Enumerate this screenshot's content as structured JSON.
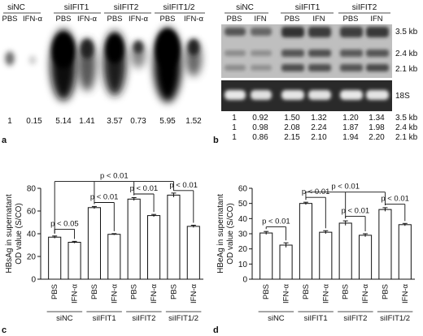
{
  "panel_a": {
    "label": "a",
    "groups": [
      "siNC",
      "siIFIT1",
      "siIFIT2",
      "siIFIT1/2"
    ],
    "lanes": [
      "PBS",
      "IFN-α",
      "PBS",
      "IFN-α",
      "PBS",
      "IFN-α",
      "PBS",
      "IFN-α"
    ],
    "values": [
      "1",
      "0.15",
      "5.14",
      "1.41",
      "3.57",
      "0.73",
      "5.95",
      "1.52"
    ]
  },
  "panel_b": {
    "label": "b",
    "groups": [
      "siNC",
      "siIFIT1",
      "siIFIT2"
    ],
    "lanes": [
      "PBS",
      "IFN",
      "PBS",
      "IFN",
      "PBS",
      "IFN"
    ],
    "bands": [
      "3.5 kb",
      "2.4 kb",
      "2.1 kb"
    ],
    "loading_label": "18S",
    "rows": [
      {
        "values": [
          "1",
          "0.92",
          "1.50",
          "1.32",
          "1.20",
          "1.34"
        ],
        "unit": "3.5 kb"
      },
      {
        "values": [
          "1",
          "0.98",
          "2.08",
          "2.24",
          "1.87",
          "1.98"
        ],
        "unit": "2.4 kb"
      },
      {
        "values": [
          "1",
          "0.86",
          "2.15",
          "2.10",
          "1.94",
          "2.20"
        ],
        "unit": "2.1 kb"
      }
    ]
  },
  "chart_data": [
    {
      "type": "bar",
      "panel": "c",
      "ylabel_line1": "HBsAg in supernatant",
      "ylabel_line2": "OD value (S/CO)",
      "ylim": [
        0,
        80
      ],
      "yticks": [
        "0",
        "20",
        "40",
        "60",
        "80"
      ],
      "categories": [
        "PBS",
        "IFN-α",
        "PBS",
        "IFN-α",
        "PBS",
        "IFN-α",
        "PBS",
        "IFN-α"
      ],
      "groups": [
        "siNC",
        "siIFIT1",
        "siIFIT2",
        "siIFIT1/2"
      ],
      "values": [
        37,
        32.5,
        63,
        39.5,
        70.5,
        56,
        74,
        46.5
      ],
      "errors": [
        1,
        0.8,
        1,
        0.6,
        1.3,
        1,
        1.8,
        1
      ],
      "significance": [
        {
          "label": "p < 0.05"
        },
        {
          "label": "p < 0.01"
        },
        {
          "label": "p < 0.01"
        },
        {
          "label": "p < 0.01"
        },
        {
          "label": "p < 0.01"
        }
      ]
    },
    {
      "type": "bar",
      "panel": "d",
      "ylabel_line1": "HBeAg in supernatant",
      "ylabel_line2": "OD value (S/CO)",
      "ylim": [
        0,
        60
      ],
      "yticks": [
        "0",
        "10",
        "20",
        "30",
        "40",
        "50",
        "60"
      ],
      "categories": [
        "PBS",
        "IFN-α",
        "PBS",
        "IFN-α",
        "PBS",
        "IFN-α",
        "PBS",
        "IFN-α"
      ],
      "groups": [
        "siNC",
        "siIFIT1",
        "siIFIT2",
        "siIFIT1/2"
      ],
      "values": [
        30.5,
        22.5,
        50,
        31,
        37,
        29,
        46,
        36
      ],
      "errors": [
        1,
        1.5,
        0.8,
        1,
        1.5,
        1,
        1.2,
        0.8
      ],
      "significance": [
        {
          "label": "p < 0.01"
        },
        {
          "label": "p < 0.01"
        },
        {
          "label": "p < 0.01"
        },
        {
          "label": "p < 0.01"
        },
        {
          "label": "p < 0.01"
        }
      ]
    }
  ],
  "panel_c_label": "c",
  "panel_d_label": "d"
}
